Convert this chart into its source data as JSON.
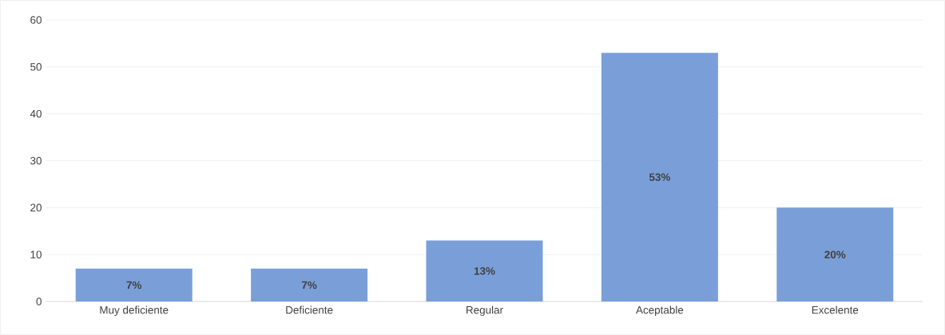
{
  "chart_data": {
    "type": "bar",
    "categories": [
      "Muy deficiente",
      "Deficiente",
      "Regular",
      "Aceptable",
      "Excelente"
    ],
    "values": [
      7,
      7,
      13,
      53,
      20
    ],
    "value_labels": [
      "7%",
      "7%",
      "13%",
      "53%",
      "20%"
    ],
    "color": "#7a9fd8",
    "ylim": [
      0,
      60
    ],
    "yticks": [
      0,
      10,
      20,
      30,
      40,
      50,
      60
    ],
    "grid": "y"
  }
}
